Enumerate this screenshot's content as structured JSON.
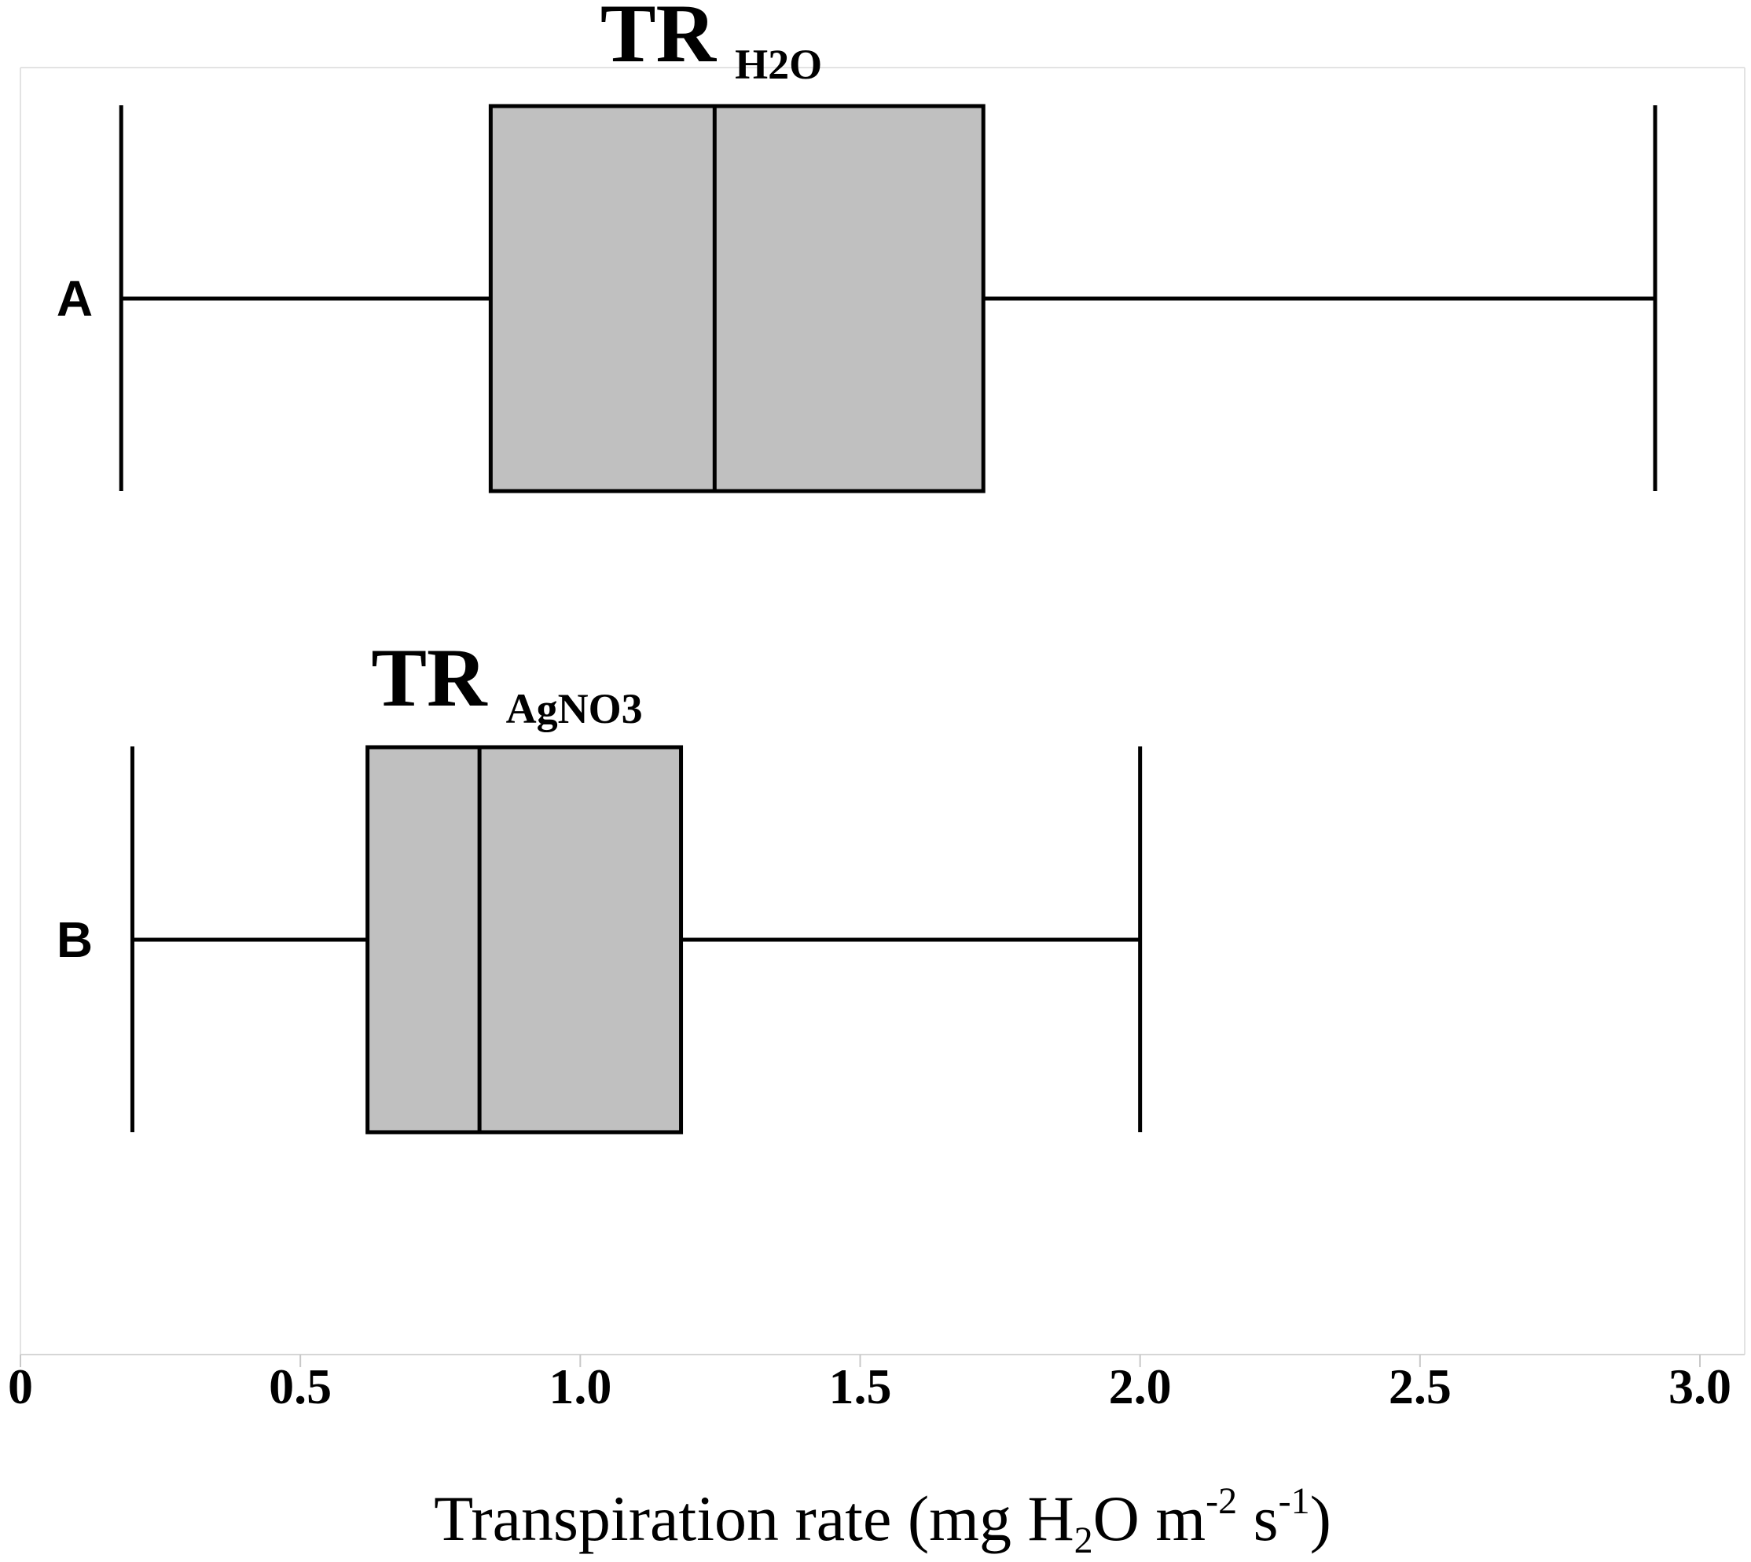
{
  "chart_data": {
    "type": "box",
    "orientation": "horizontal",
    "xlim": [
      0,
      3.0
    ],
    "x_ticks": [
      "0",
      "0.5",
      "1.0",
      "1.5",
      "2.0",
      "2.5",
      "3.0"
    ],
    "x_tick_values": [
      0,
      0.5,
      1.0,
      1.5,
      2.0,
      2.5,
      3.0
    ],
    "xlabel": {
      "before": "Transpiration rate (mg H",
      "sub": "2",
      "middle": "O m",
      "sup1": "-2",
      "space": " s",
      "sup2": "-1",
      "after": ")"
    },
    "grid": false,
    "series": [
      {
        "label": "A",
        "title_main": "TR",
        "title_sub": "H2O",
        "min": 0.18,
        "q1": 0.84,
        "median": 1.24,
        "q3": 1.72,
        "max": 2.92
      },
      {
        "label": "B",
        "title_main": "TR",
        "title_sub": "AgNO3",
        "min": 0.2,
        "q1": 0.62,
        "median": 0.82,
        "q3": 1.18,
        "max": 2.0
      }
    ]
  }
}
